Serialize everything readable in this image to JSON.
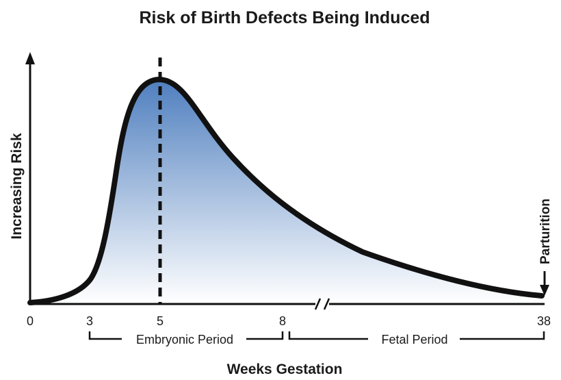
{
  "chart_data": {
    "type": "area",
    "title": "Risk of Birth Defects Being Induced",
    "xlabel": "Weeks Gestation",
    "ylabel": "Increasing Risk",
    "x_ticks": [
      "0",
      "3",
      "5",
      "8",
      "38"
    ],
    "peak_week": 5,
    "periods": [
      {
        "label": "Embryonic Period",
        "start": 3,
        "end": 8
      },
      {
        "label": "Fetal Period",
        "start": 8,
        "end": 38
      }
    ],
    "annotation": "Parturition",
    "colors": {
      "fill_top": "#4f7fbf",
      "fill_bottom": "#ffffff",
      "line": "#111111"
    }
  }
}
